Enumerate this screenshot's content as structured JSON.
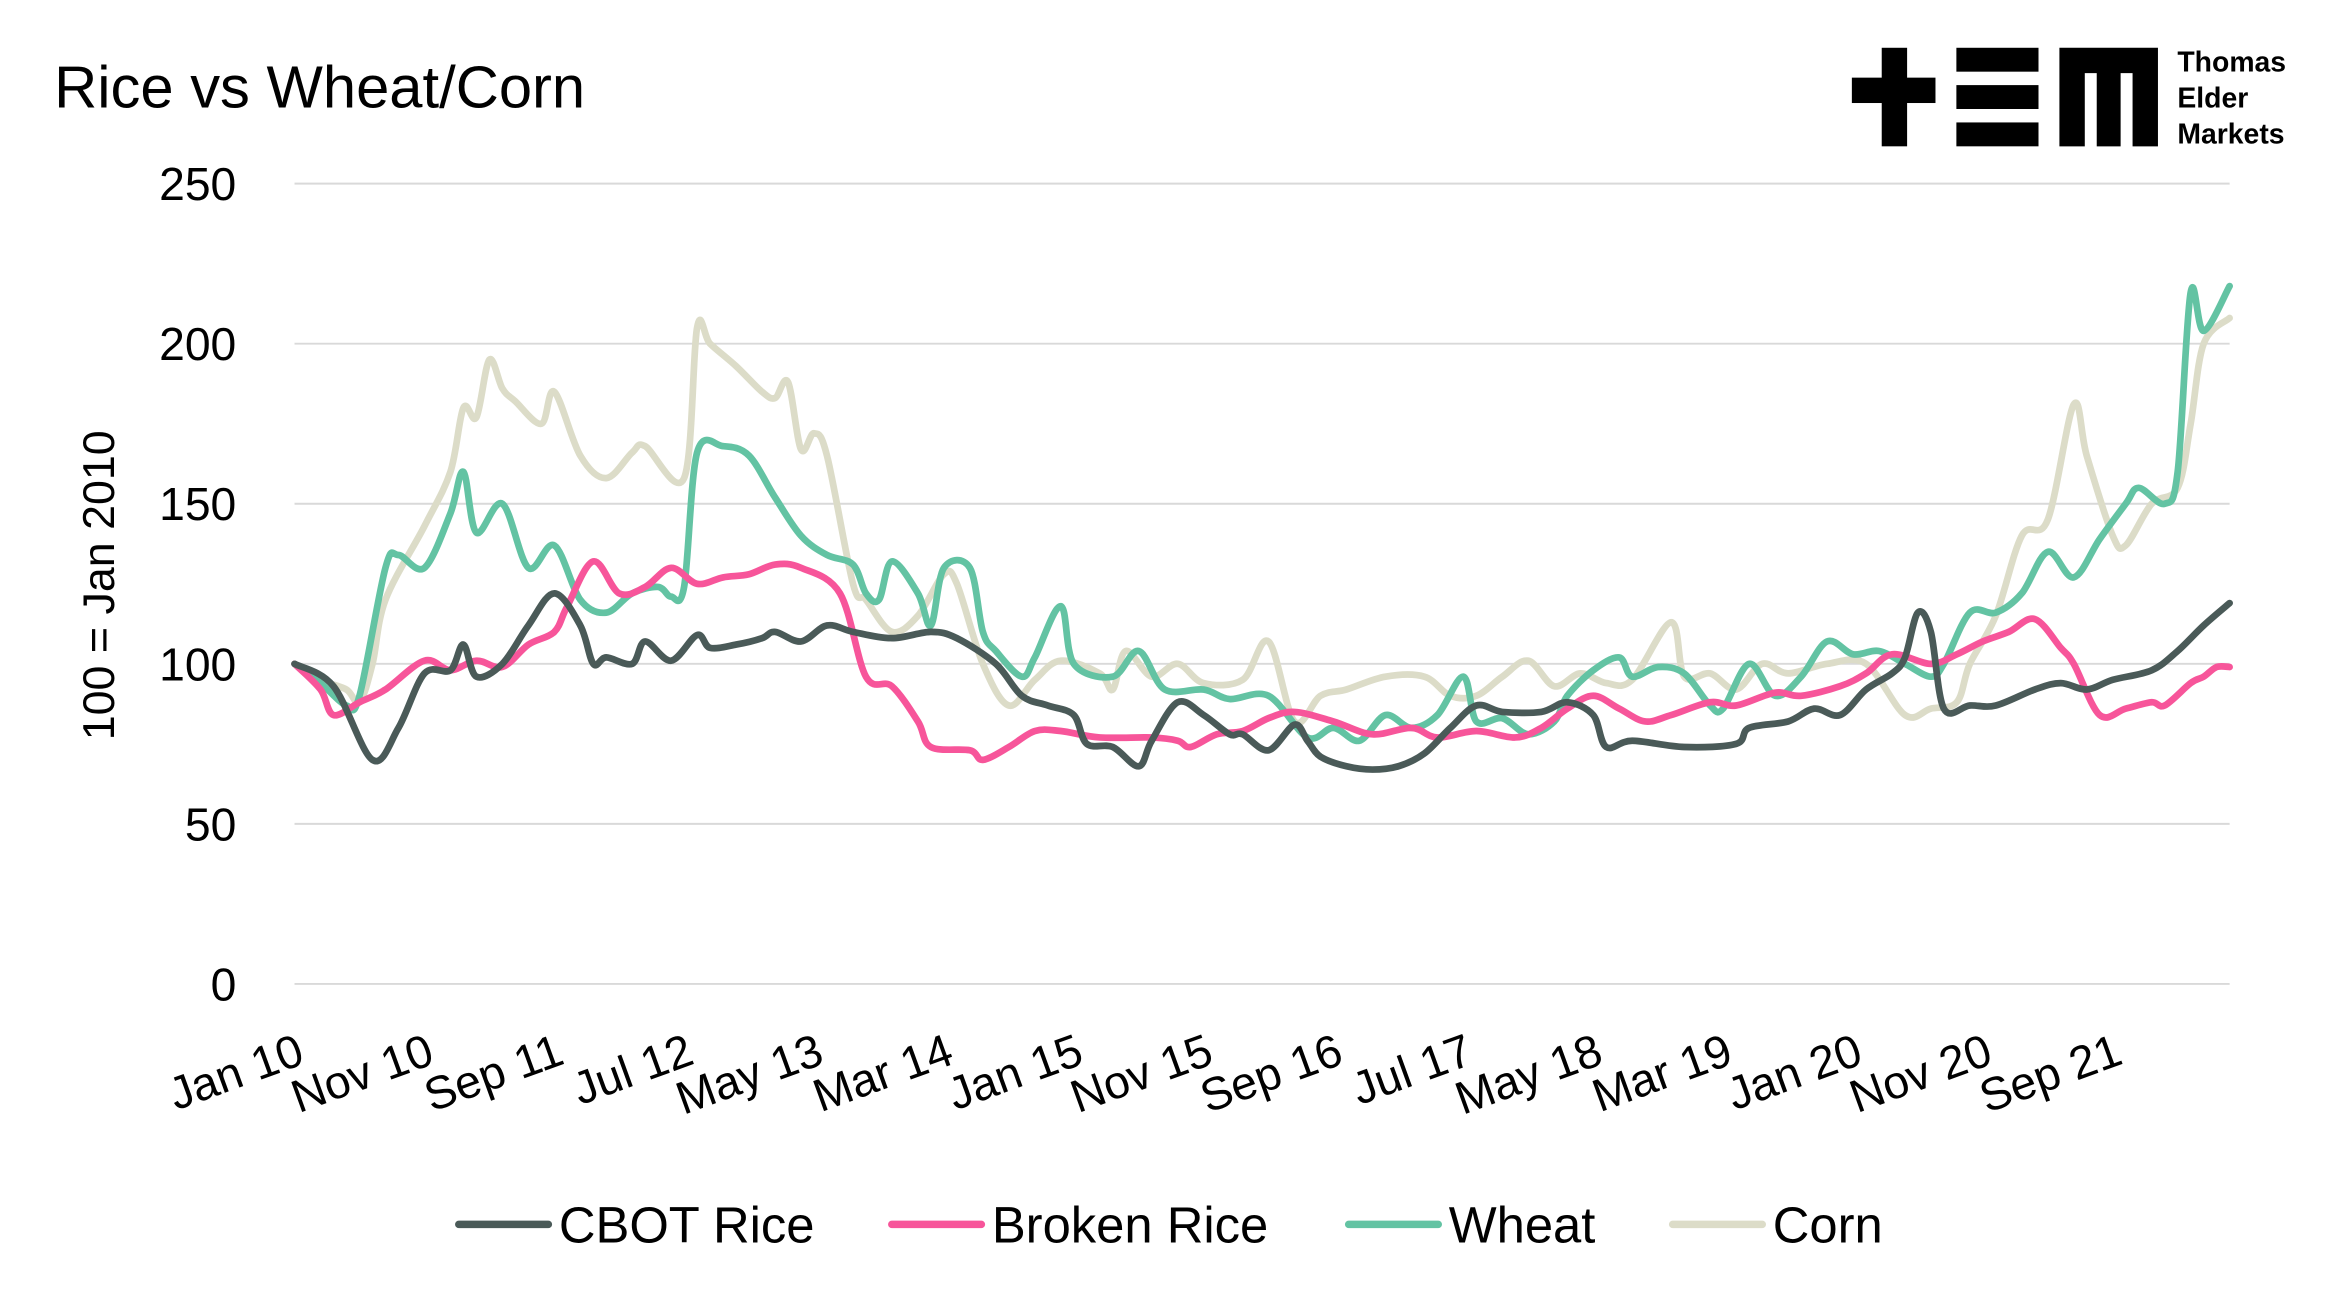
{
  "chart_data": {
    "type": "line",
    "title": "Rice vs Wheat/Corn",
    "xlabel": "",
    "ylabel": "100 = Jan 2010",
    "ylim": [
      0,
      250
    ],
    "yticks": [
      0,
      50,
      100,
      150,
      200,
      250
    ],
    "ytick_labels": [
      "0",
      "50",
      "100",
      "150",
      "200",
      "250"
    ],
    "x_unit": "months since Jan 2010",
    "xlim": [
      0,
      149
    ],
    "xticks": [
      0,
      10,
      20,
      30,
      40,
      50,
      60,
      70,
      80,
      90,
      100,
      110,
      120,
      130,
      140
    ],
    "xtick_labels": [
      "Jan 10",
      "Nov 10",
      "Sep 11",
      "Jul 12",
      "May 13",
      "Mar 14",
      "Jan 15",
      "Nov 15",
      "Sep 16",
      "Jul 17",
      "May 18",
      "Mar 19",
      "Jan 20",
      "Nov 20",
      "Sep 21"
    ],
    "grid": true,
    "legend_position": "bottom",
    "series": [
      {
        "name": "CBOT Rice",
        "color": "#4a5a58",
        "points": [
          [
            0,
            100
          ],
          [
            3,
            93
          ],
          [
            6,
            70
          ],
          [
            8,
            80
          ],
          [
            10,
            97
          ],
          [
            12,
            98
          ],
          [
            13,
            106
          ],
          [
            14,
            96
          ],
          [
            16,
            100
          ],
          [
            18,
            112
          ],
          [
            20,
            122
          ],
          [
            22,
            112
          ],
          [
            23,
            100
          ],
          [
            24,
            102
          ],
          [
            26,
            100
          ],
          [
            27,
            107
          ],
          [
            29,
            101
          ],
          [
            31,
            109
          ],
          [
            32,
            105
          ],
          [
            34,
            106
          ],
          [
            36,
            108
          ],
          [
            37,
            110
          ],
          [
            39,
            107
          ],
          [
            41,
            112
          ],
          [
            43,
            110
          ],
          [
            46,
            108
          ],
          [
            49,
            110
          ],
          [
            51,
            108
          ],
          [
            54,
            100
          ],
          [
            56,
            90
          ],
          [
            58,
            87
          ],
          [
            60,
            84
          ],
          [
            61,
            75
          ],
          [
            63,
            74
          ],
          [
            65,
            68
          ],
          [
            66,
            76
          ],
          [
            68,
            88
          ],
          [
            70,
            84
          ],
          [
            72,
            78
          ],
          [
            73,
            78
          ],
          [
            75,
            73
          ],
          [
            77,
            81
          ],
          [
            78,
            76
          ],
          [
            79,
            71
          ],
          [
            81,
            68
          ],
          [
            83,
            67
          ],
          [
            85,
            68
          ],
          [
            87,
            72
          ],
          [
            89,
            80
          ],
          [
            91,
            87
          ],
          [
            93,
            85
          ],
          [
            96,
            85
          ],
          [
            98,
            88
          ],
          [
            100,
            84
          ],
          [
            101,
            74
          ],
          [
            103,
            76
          ],
          [
            107,
            74
          ],
          [
            111,
            75
          ],
          [
            112,
            80
          ],
          [
            115,
            82
          ],
          [
            117,
            86
          ],
          [
            119,
            84
          ],
          [
            121,
            92
          ],
          [
            123,
            97
          ],
          [
            124,
            102
          ],
          [
            125,
            116
          ],
          [
            126,
            110
          ],
          [
            127,
            86
          ],
          [
            129,
            87
          ],
          [
            131,
            87
          ],
          [
            134,
            92
          ],
          [
            136,
            94
          ],
          [
            138,
            92
          ],
          [
            140,
            95
          ],
          [
            143,
            98
          ],
          [
            145,
            104
          ],
          [
            147,
            112
          ],
          [
            149,
            119
          ]
        ]
      },
      {
        "name": "Broken Rice",
        "color": "#f7559a",
        "points": [
          [
            0,
            100
          ],
          [
            2,
            92
          ],
          [
            3,
            84
          ],
          [
            5,
            88
          ],
          [
            7,
            92
          ],
          [
            10,
            101
          ],
          [
            12,
            98
          ],
          [
            14,
            101
          ],
          [
            16,
            99
          ],
          [
            18,
            106
          ],
          [
            20,
            110
          ],
          [
            21,
            118
          ],
          [
            23,
            132
          ],
          [
            25,
            122
          ],
          [
            27,
            124
          ],
          [
            29,
            130
          ],
          [
            31,
            125
          ],
          [
            33,
            127
          ],
          [
            35,
            128
          ],
          [
            37,
            131
          ],
          [
            39,
            130
          ],
          [
            42,
            122
          ],
          [
            44,
            96
          ],
          [
            46,
            93
          ],
          [
            48,
            82
          ],
          [
            49,
            74
          ],
          [
            52,
            73
          ],
          [
            53,
            70
          ],
          [
            55,
            74
          ],
          [
            57,
            79
          ],
          [
            59,
            79
          ],
          [
            62,
            77
          ],
          [
            66,
            77
          ],
          [
            68,
            76
          ],
          [
            69,
            74
          ],
          [
            71,
            78
          ],
          [
            73,
            79
          ],
          [
            75,
            83
          ],
          [
            77,
            85
          ],
          [
            80,
            82
          ],
          [
            83,
            78
          ],
          [
            86,
            80
          ],
          [
            88,
            77
          ],
          [
            91,
            79
          ],
          [
            94,
            77
          ],
          [
            96,
            80
          ],
          [
            98,
            86
          ],
          [
            100,
            90
          ],
          [
            102,
            86
          ],
          [
            104,
            82
          ],
          [
            106,
            84
          ],
          [
            109,
            88
          ],
          [
            111,
            87
          ],
          [
            114,
            91
          ],
          [
            116,
            90
          ],
          [
            119,
            93
          ],
          [
            121,
            97
          ],
          [
            123,
            103
          ],
          [
            126,
            100
          ],
          [
            128,
            103
          ],
          [
            130,
            107
          ],
          [
            132,
            110
          ],
          [
            134,
            114
          ],
          [
            136,
            105
          ],
          [
            137,
            100
          ],
          [
            139,
            84
          ],
          [
            141,
            86
          ],
          [
            143,
            88
          ],
          [
            144,
            87
          ],
          [
            146,
            94
          ],
          [
            147,
            96
          ],
          [
            148,
            99
          ],
          [
            149,
            99
          ]
        ]
      },
      {
        "name": "Wheat",
        "color": "#63c3a3",
        "points": [
          [
            0,
            100
          ],
          [
            2,
            94
          ],
          [
            4,
            87
          ],
          [
            5,
            90
          ],
          [
            7,
            130
          ],
          [
            8,
            134
          ],
          [
            10,
            130
          ],
          [
            12,
            147
          ],
          [
            13,
            160
          ],
          [
            14,
            141
          ],
          [
            16,
            150
          ],
          [
            18,
            130
          ],
          [
            20,
            137
          ],
          [
            22,
            120
          ],
          [
            24,
            116
          ],
          [
            26,
            122
          ],
          [
            28,
            124
          ],
          [
            29,
            121
          ],
          [
            30,
            124
          ],
          [
            31,
            166
          ],
          [
            33,
            168
          ],
          [
            35,
            165
          ],
          [
            37,
            152
          ],
          [
            39,
            140
          ],
          [
            41,
            134
          ],
          [
            43,
            131
          ],
          [
            44,
            122
          ],
          [
            45,
            120
          ],
          [
            46,
            132
          ],
          [
            48,
            122
          ],
          [
            49,
            112
          ],
          [
            50,
            130
          ],
          [
            52,
            130
          ],
          [
            53,
            110
          ],
          [
            54,
            104
          ],
          [
            56,
            96
          ],
          [
            57,
            102
          ],
          [
            59,
            118
          ],
          [
            60,
            100
          ],
          [
            63,
            96
          ],
          [
            65,
            104
          ],
          [
            67,
            92
          ],
          [
            70,
            92
          ],
          [
            72,
            89
          ],
          [
            75,
            90
          ],
          [
            78,
            77
          ],
          [
            80,
            80
          ],
          [
            82,
            76
          ],
          [
            84,
            84
          ],
          [
            86,
            80
          ],
          [
            88,
            84
          ],
          [
            90,
            96
          ],
          [
            91,
            82
          ],
          [
            93,
            83
          ],
          [
            95,
            78
          ],
          [
            97,
            82
          ],
          [
            98,
            90
          ],
          [
            100,
            98
          ],
          [
            102,
            102
          ],
          [
            103,
            96
          ],
          [
            105,
            99
          ],
          [
            107,
            97
          ],
          [
            109,
            87
          ],
          [
            110,
            86
          ],
          [
            112,
            100
          ],
          [
            114,
            90
          ],
          [
            116,
            96
          ],
          [
            118,
            107
          ],
          [
            120,
            103
          ],
          [
            122,
            104
          ],
          [
            124,
            100
          ],
          [
            126,
            96
          ],
          [
            127,
            100
          ],
          [
            129,
            116
          ],
          [
            131,
            116
          ],
          [
            133,
            122
          ],
          [
            135,
            135
          ],
          [
            137,
            127
          ],
          [
            139,
            139
          ],
          [
            141,
            150
          ],
          [
            142,
            155
          ],
          [
            144,
            150
          ],
          [
            145,
            160
          ],
          [
            146,
            216
          ],
          [
            147,
            204
          ],
          [
            149,
            218
          ]
        ]
      },
      {
        "name": "Corn",
        "color": "#dcdcc8",
        "points": [
          [
            0,
            100
          ],
          [
            2,
            95
          ],
          [
            4,
            92
          ],
          [
            5,
            88
          ],
          [
            6,
            100
          ],
          [
            7,
            120
          ],
          [
            10,
            143
          ],
          [
            12,
            160
          ],
          [
            13,
            180
          ],
          [
            14,
            177
          ],
          [
            15,
            195
          ],
          [
            16,
            186
          ],
          [
            17,
            182
          ],
          [
            19,
            175
          ],
          [
            20,
            185
          ],
          [
            22,
            165
          ],
          [
            24,
            158
          ],
          [
            26,
            166
          ],
          [
            27,
            168
          ],
          [
            30,
            158
          ],
          [
            31,
            205
          ],
          [
            32,
            200
          ],
          [
            34,
            193
          ],
          [
            36,
            185
          ],
          [
            37,
            183
          ],
          [
            38,
            188
          ],
          [
            39,
            167
          ],
          [
            40,
            172
          ],
          [
            41,
            165
          ],
          [
            43,
            125
          ],
          [
            44,
            120
          ],
          [
            46,
            110
          ],
          [
            48,
            115
          ],
          [
            50,
            128
          ],
          [
            51,
            125
          ],
          [
            53,
            100
          ],
          [
            55,
            87
          ],
          [
            57,
            95
          ],
          [
            59,
            101
          ],
          [
            62,
            97
          ],
          [
            63,
            92
          ],
          [
            64,
            104
          ],
          [
            66,
            96
          ],
          [
            68,
            100
          ],
          [
            70,
            94
          ],
          [
            73,
            95
          ],
          [
            75,
            107
          ],
          [
            77,
            82
          ],
          [
            79,
            90
          ],
          [
            81,
            92
          ],
          [
            84,
            96
          ],
          [
            87,
            96
          ],
          [
            89,
            90
          ],
          [
            91,
            90
          ],
          [
            93,
            96
          ],
          [
            95,
            101
          ],
          [
            97,
            93
          ],
          [
            99,
            97
          ],
          [
            101,
            94
          ],
          [
            103,
            95
          ],
          [
            106,
            113
          ],
          [
            107,
            96
          ],
          [
            109,
            97
          ],
          [
            111,
            92
          ],
          [
            113,
            100
          ],
          [
            115,
            97
          ],
          [
            118,
            100
          ],
          [
            121,
            100
          ],
          [
            124,
            84
          ],
          [
            126,
            86
          ],
          [
            128,
            88
          ],
          [
            129,
            100
          ],
          [
            131,
            115
          ],
          [
            133,
            140
          ],
          [
            135,
            145
          ],
          [
            137,
            181
          ],
          [
            138,
            165
          ],
          [
            140,
            140
          ],
          [
            141,
            137
          ],
          [
            143,
            150
          ],
          [
            145,
            155
          ],
          [
            146,
            175
          ],
          [
            147,
            200
          ],
          [
            149,
            208
          ]
        ]
      }
    ]
  },
  "logo": {
    "lines": [
      "Thomas",
      "Elder",
      "Markets"
    ]
  }
}
